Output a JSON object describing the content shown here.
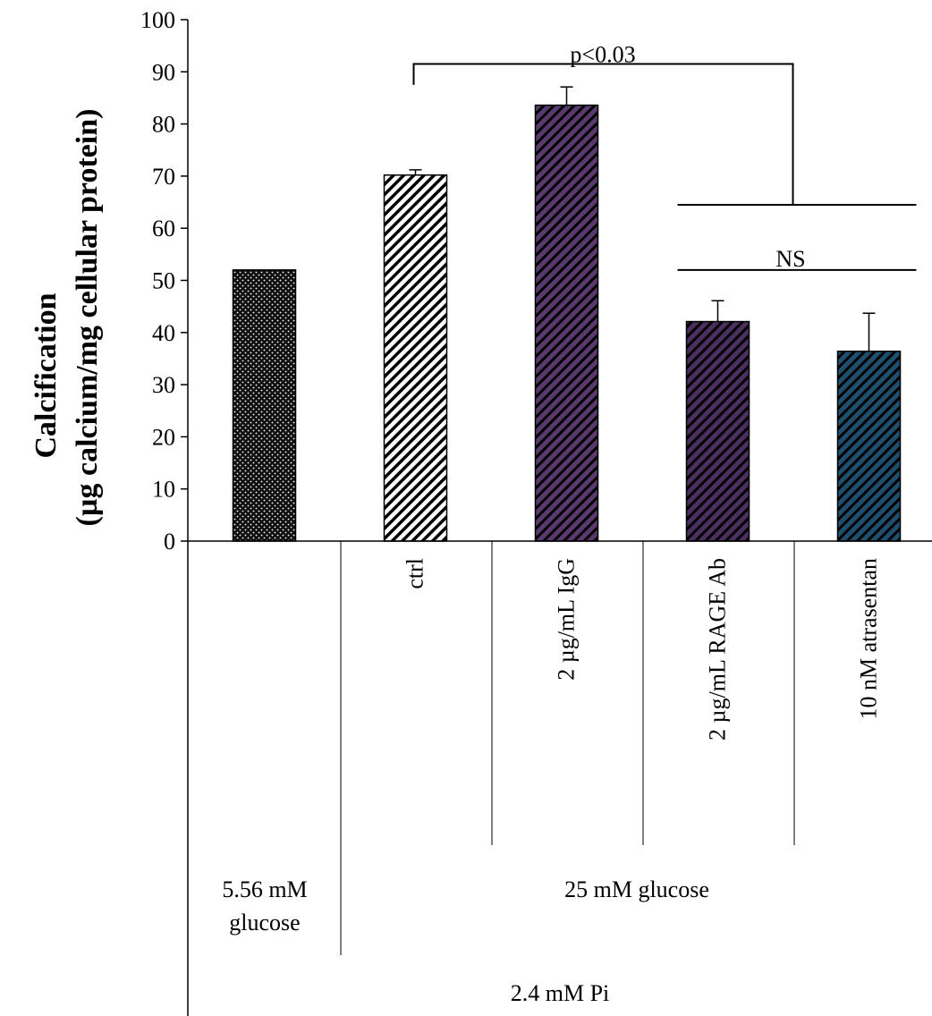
{
  "chart_data": {
    "type": "bar",
    "title": "",
    "ylabel_line1": "Calcification",
    "ylabel_line2": "(µg calcium/mg cellular protein)",
    "ylim": [
      0,
      100
    ],
    "yticks": [
      0,
      10,
      20,
      30,
      40,
      50,
      60,
      70,
      80,
      90,
      100
    ],
    "grid": false,
    "categories": [
      "",
      "ctrl",
      "2 µg/mL  IgG",
      "2 µg/mL RAGE Ab",
      "10 nM atrasentan"
    ],
    "values": [
      52,
      70.2,
      83.6,
      42.1,
      36.4
    ],
    "errors": [
      0,
      1,
      3.5,
      4,
      7.3
    ],
    "colors": [
      "#111111",
      "#ffffff",
      "#5a3a6e",
      "#4a2f60",
      "#1f4f6e"
    ],
    "fill_patterns": [
      "dots",
      "diagonal-black-on-white",
      "diagonal-black-on-purple",
      "diagonal-black-on-purple",
      "diagonal-black-on-blue"
    ],
    "group_labels": {
      "glucose_low_line1": "5.56 mM",
      "glucose_low_line2": "glucose",
      "glucose_high": "25 mM glucose",
      "phosphate": "2.4 mM Pi"
    },
    "annotations": [
      {
        "text": "p<0.03",
        "from_bar": 1,
        "to_bars": [
          3,
          4
        ],
        "y": 91.5
      },
      {
        "text": "NS",
        "from_bar": 3,
        "to_bar": 4,
        "y": 52
      }
    ]
  }
}
